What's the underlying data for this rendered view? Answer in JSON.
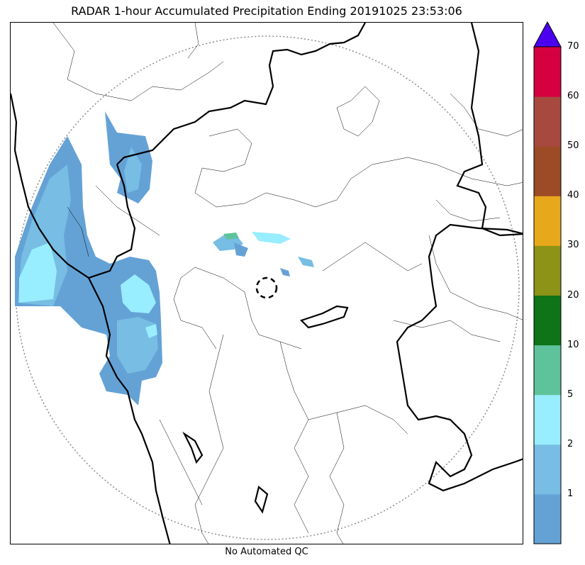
{
  "title": "RADAR 1-hour Accumulated Precipitation Ending 20191025 23:53:06",
  "footer": "No Automated QC",
  "colorbar": {
    "levels": [
      {
        "label": "",
        "color": "#64a2d6"
      },
      {
        "label": "1",
        "color": "#77bde4"
      },
      {
        "label": "2",
        "color": "#98edff"
      },
      {
        "label": "5",
        "color": "#5ec39a"
      },
      {
        "label": "10",
        "color": "#0f7317"
      },
      {
        "label": "20",
        "color": "#8c9317"
      },
      {
        "label": "30",
        "color": "#e8a81b"
      },
      {
        "label": "40",
        "color": "#9c4b26"
      },
      {
        "label": "50",
        "color": "#a8493f"
      },
      {
        "label": "60",
        "color": "#d50040"
      },
      {
        "label": "70",
        "color": ""
      }
    ],
    "extend_color": "#4b00f0"
  },
  "colors": {
    "rain_light": "#64a2d6",
    "rain_moderate": "#77bde4",
    "rain_heavy": "#98edff",
    "rain_strong": "#5ec39a",
    "borders": "#000000",
    "range_ring": "#8c8c8c"
  }
}
